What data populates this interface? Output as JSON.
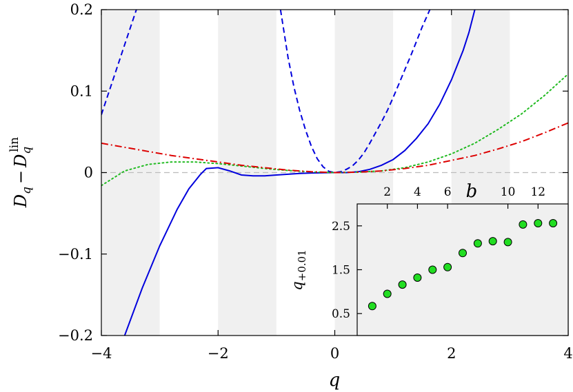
{
  "chart_data": [
    {
      "type": "line",
      "xlabel": "q",
      "ylabel": "D_q − D_q^lin",
      "xlim": [
        -4,
        4
      ],
      "ylim": [
        -0.2,
        0.2
      ],
      "x_ticks": [
        -4,
        -2,
        0,
        2,
        4
      ],
      "x_tick_labels": [
        "−4",
        "−2",
        "0",
        "2",
        "4"
      ],
      "y_ticks": [
        -0.2,
        -0.1,
        0,
        0.1,
        0.2
      ],
      "y_tick_labels": [
        "−0.2",
        "−0.1",
        "0",
        "0.1",
        "0.2"
      ],
      "shaded_bands_x": [
        [
          -4,
          -3
        ],
        [
          -2,
          -1
        ],
        [
          0,
          1
        ],
        [
          2,
          3
        ]
      ],
      "band_color": "#f0f0f0",
      "reference_line_y": 0,
      "series": [
        {
          "style": "solid",
          "color": "#0000dd",
          "x": [
            -3.6,
            -3.3,
            -3.0,
            -2.7,
            -2.5,
            -2.3,
            -2.2,
            -2.0,
            -1.8,
            -1.6,
            -1.4,
            -1.2,
            -1.0,
            -0.8,
            -0.6,
            -0.4,
            -0.2,
            0.0,
            0.2,
            0.4,
            0.6,
            0.8,
            1.0,
            1.2,
            1.4,
            1.6,
            1.8,
            2.0,
            2.2,
            2.3,
            2.4
          ],
          "y": [
            -0.2,
            -0.142,
            -0.09,
            -0.045,
            -0.02,
            -0.002,
            0.005,
            0.006,
            0.002,
            -0.003,
            -0.004,
            -0.004,
            -0.003,
            -0.002,
            -0.001,
            -0.0005,
            -0.0002,
            0.0,
            0.0,
            0.001,
            0.004,
            0.009,
            0.016,
            0.027,
            0.042,
            0.06,
            0.084,
            0.114,
            0.15,
            0.172,
            0.2
          ]
        },
        {
          "style": "dashed",
          "color": "#0000dd",
          "x": [
            -4.0,
            -3.8,
            -3.6,
            -3.4
          ],
          "y": [
            0.071,
            0.114,
            0.157,
            0.2
          ]
        },
        {
          "style": "dashed",
          "color": "#0000dd",
          "x": [
            -0.93,
            -0.8,
            -0.7,
            -0.6,
            -0.5,
            -0.4,
            -0.3,
            -0.2,
            -0.1,
            0.0,
            0.1,
            0.2,
            0.3,
            0.4,
            0.5,
            0.6,
            0.7,
            0.8,
            0.9,
            1.0,
            1.1,
            1.2,
            1.3,
            1.4,
            1.5,
            1.63
          ],
          "y": [
            0.2,
            0.141,
            0.105,
            0.076,
            0.052,
            0.032,
            0.017,
            0.007,
            0.0015,
            0.0,
            0.001,
            0.004,
            0.008,
            0.015,
            0.024,
            0.036,
            0.049,
            0.062,
            0.076,
            0.092,
            0.109,
            0.126,
            0.143,
            0.161,
            0.179,
            0.2
          ]
        },
        {
          "style": "dotted",
          "color": "#22bb22",
          "x": [
            -4.0,
            -3.6,
            -3.2,
            -2.8,
            -2.4,
            -2.0,
            -1.6,
            -1.2,
            -0.8,
            -0.4,
            0.0,
            0.4,
            0.8,
            1.2,
            1.6,
            2.0,
            2.4,
            2.8,
            3.2,
            3.6,
            4.0
          ],
          "y": [
            -0.016,
            0.002,
            0.01,
            0.013,
            0.013,
            0.011,
            0.008,
            0.005,
            0.0025,
            0.0008,
            0.0,
            0.0005,
            0.002,
            0.006,
            0.013,
            0.023,
            0.036,
            0.053,
            0.072,
            0.095,
            0.121
          ]
        },
        {
          "style": "dashdot",
          "color": "#dd0000",
          "x": [
            -4.0,
            -3.6,
            -3.2,
            -2.8,
            -2.4,
            -2.0,
            -1.6,
            -1.2,
            -0.8,
            -0.4,
            0.0,
            0.4,
            0.8,
            1.2,
            1.6,
            2.0,
            2.4,
            2.8,
            3.2,
            3.6,
            4.0
          ],
          "y": [
            0.036,
            0.031,
            0.026,
            0.021,
            0.017,
            0.013,
            0.009,
            0.006,
            0.003,
            0.001,
            0.0,
            0.0005,
            0.002,
            0.005,
            0.009,
            0.015,
            0.021,
            0.029,
            0.038,
            0.049,
            0.061
          ]
        }
      ]
    },
    {
      "type": "scatter",
      "xlabel": "b",
      "ylabel": "q+0.01",
      "xlim": [
        0,
        14
      ],
      "ylim": [
        0,
        3
      ],
      "x_ticks": [
        2,
        4,
        6,
        10,
        12
      ],
      "x_tick_labels": [
        "2",
        "4",
        "6",
        "10",
        "12"
      ],
      "y_ticks": [
        0.5,
        1.5,
        2.5
      ],
      "y_tick_labels": [
        "0.5",
        "1.5",
        "2.5"
      ],
      "marker_color": "#22dd22",
      "x": [
        1,
        2,
        3,
        4,
        5,
        6,
        7,
        8,
        9,
        10,
        11,
        12,
        13
      ],
      "y": [
        0.67,
        0.95,
        1.16,
        1.32,
        1.5,
        1.56,
        1.88,
        2.1,
        2.15,
        2.13,
        2.53,
        2.56,
        2.56
      ]
    }
  ]
}
